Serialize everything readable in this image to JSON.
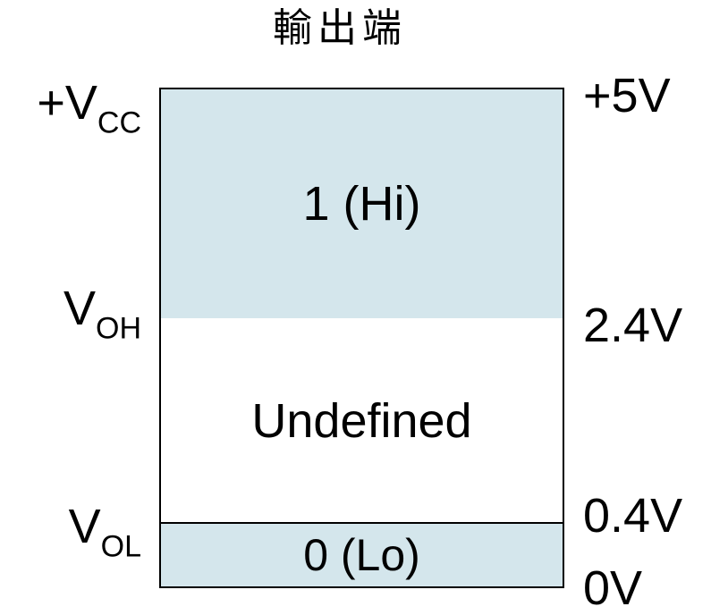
{
  "title": "輸出端",
  "colors": {
    "logic_fill": "#d4e6ec",
    "undefined_fill": "#ffffff",
    "border": "#000000"
  },
  "regions": {
    "high": "1 (Hi)",
    "undefined": "Undefined",
    "low": "0 (Lo)"
  },
  "left_labels": {
    "vcc": {
      "main": "+V",
      "sub": "CC"
    },
    "voh": {
      "main": "V",
      "sub": "OH"
    },
    "vol": {
      "main": "V",
      "sub": "OL"
    }
  },
  "right_labels": {
    "vcc": "+5V",
    "voh": "2.4V",
    "vol": "0.4V",
    "zero": "0V"
  }
}
